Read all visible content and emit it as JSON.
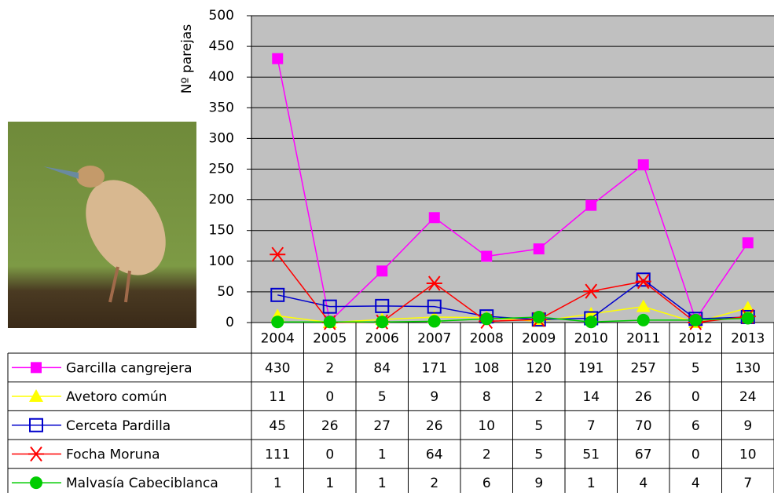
{
  "chart_data": {
    "type": "line",
    "y_label": "Nº parejas",
    "categories": [
      "2004",
      "2005",
      "2006",
      "2007",
      "2008",
      "2009",
      "2010",
      "2011",
      "2012",
      "2013"
    ],
    "ylim": [
      0,
      500
    ],
    "yticks": [
      0,
      50,
      100,
      150,
      200,
      250,
      300,
      350,
      400,
      450,
      500
    ],
    "grid": true,
    "plot_background": "#c0c0c0",
    "series": [
      {
        "name": "Garcilla cangrejera",
        "color": "#ff00ff",
        "marker": "square",
        "values": [
          430,
          2,
          84,
          171,
          108,
          120,
          191,
          257,
          5,
          130
        ]
      },
      {
        "name": "Avetoro común",
        "color": "#ffff00",
        "marker": "triangle",
        "values": [
          11,
          0,
          5,
          9,
          8,
          2,
          14,
          26,
          0,
          24
        ]
      },
      {
        "name": "Cerceta Pardilla",
        "color": "#0000cc",
        "marker": "open-square",
        "values": [
          45,
          26,
          27,
          26,
          10,
          5,
          7,
          70,
          6,
          9
        ]
      },
      {
        "name": "Focha Moruna",
        "color": "#ff0000",
        "marker": "star",
        "values": [
          111,
          0,
          1,
          64,
          2,
          5,
          51,
          67,
          0,
          10
        ]
      },
      {
        "name": "Malvasía Cabeciblanca",
        "color": "#00cc00",
        "marker": "circle",
        "values": [
          1,
          1,
          1,
          2,
          6,
          9,
          1,
          4,
          4,
          7
        ]
      }
    ]
  }
}
